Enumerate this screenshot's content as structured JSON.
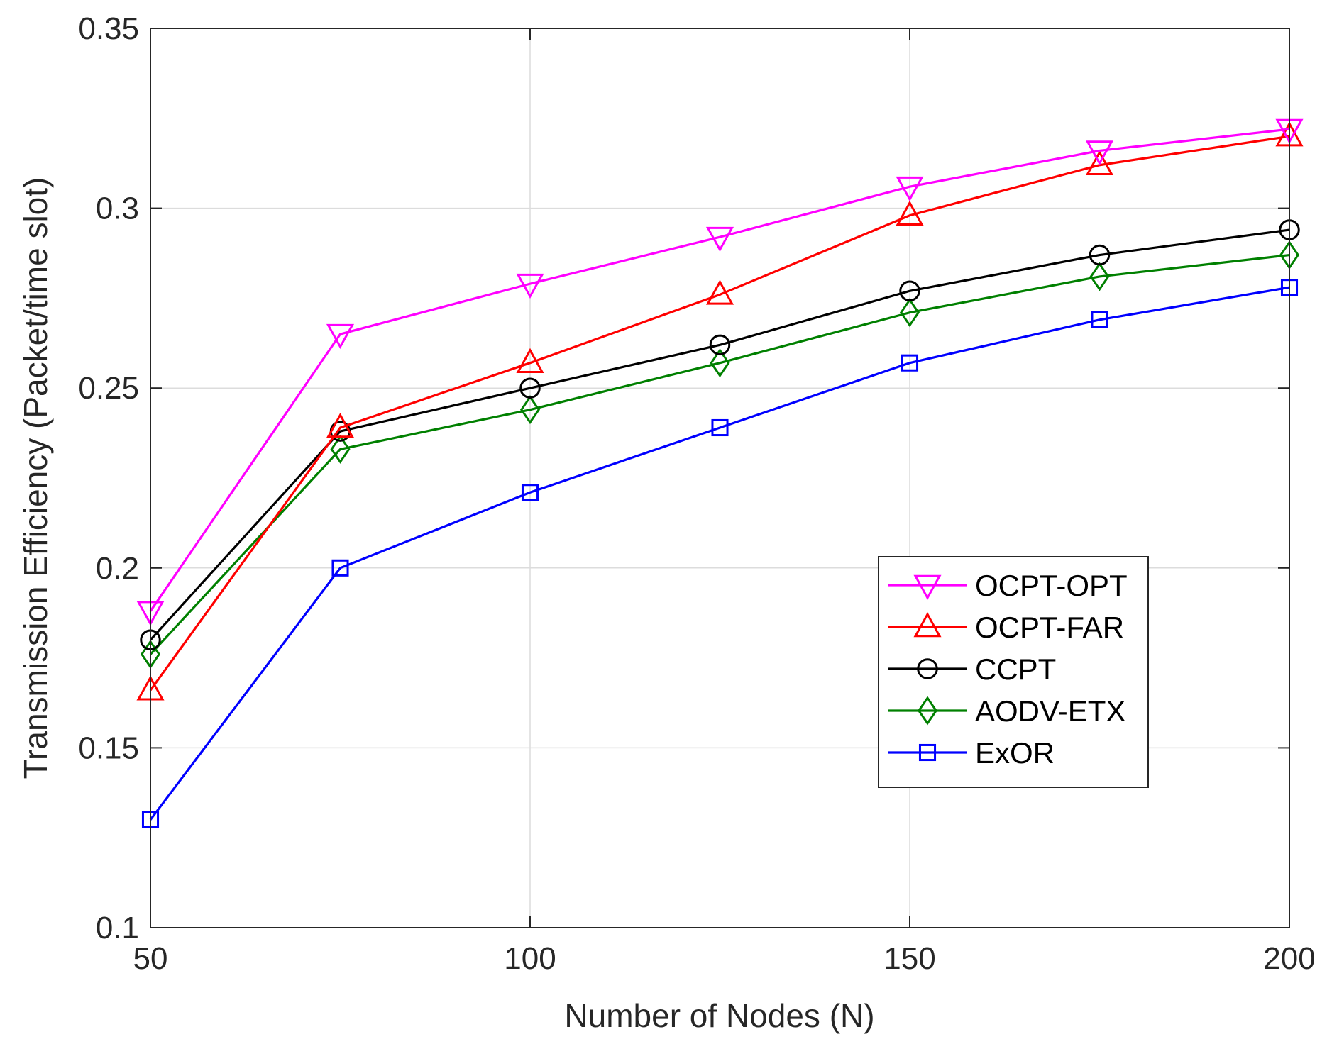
{
  "chart_data": {
    "type": "line",
    "title": "",
    "xlabel": "Number of Nodes (N)",
    "ylabel": "Transmission Efficiency (Packet/time slot)",
    "xlim": [
      50,
      200
    ],
    "ylim": [
      0.1,
      0.35
    ],
    "xticks": [
      50,
      100,
      150,
      200
    ],
    "xtick_labels": [
      "50",
      "100",
      "150",
      "200"
    ],
    "yticks": [
      0.1,
      0.15,
      0.2,
      0.25,
      0.3,
      0.35
    ],
    "ytick_labels": [
      "0.1",
      "0.15",
      "0.2",
      "0.25",
      "0.3",
      "0.35"
    ],
    "grid": true,
    "legend_position": "right",
    "x": [
      50,
      75,
      100,
      125,
      150,
      175,
      200
    ],
    "series": [
      {
        "name": "OCPT-OPT",
        "color": "#ff00ff",
        "marker": "triangle-down",
        "values": [
          0.188,
          0.265,
          0.279,
          0.292,
          0.306,
          0.316,
          0.322
        ]
      },
      {
        "name": "OCPT-FAR",
        "color": "#ff0000",
        "marker": "triangle-up",
        "values": [
          0.166,
          0.239,
          0.257,
          0.276,
          0.298,
          0.312,
          0.32
        ]
      },
      {
        "name": "CCPT",
        "color": "#000000",
        "marker": "circle",
        "values": [
          0.18,
          0.238,
          0.25,
          0.262,
          0.277,
          0.287,
          0.294
        ]
      },
      {
        "name": "AODV-ETX",
        "color": "#008000",
        "marker": "diamond",
        "values": [
          0.176,
          0.233,
          0.244,
          0.257,
          0.271,
          0.281,
          0.287
        ]
      },
      {
        "name": "ExOR",
        "color": "#0000ff",
        "marker": "square",
        "values": [
          0.13,
          0.2,
          0.221,
          0.239,
          0.257,
          0.269,
          0.278
        ]
      }
    ]
  }
}
